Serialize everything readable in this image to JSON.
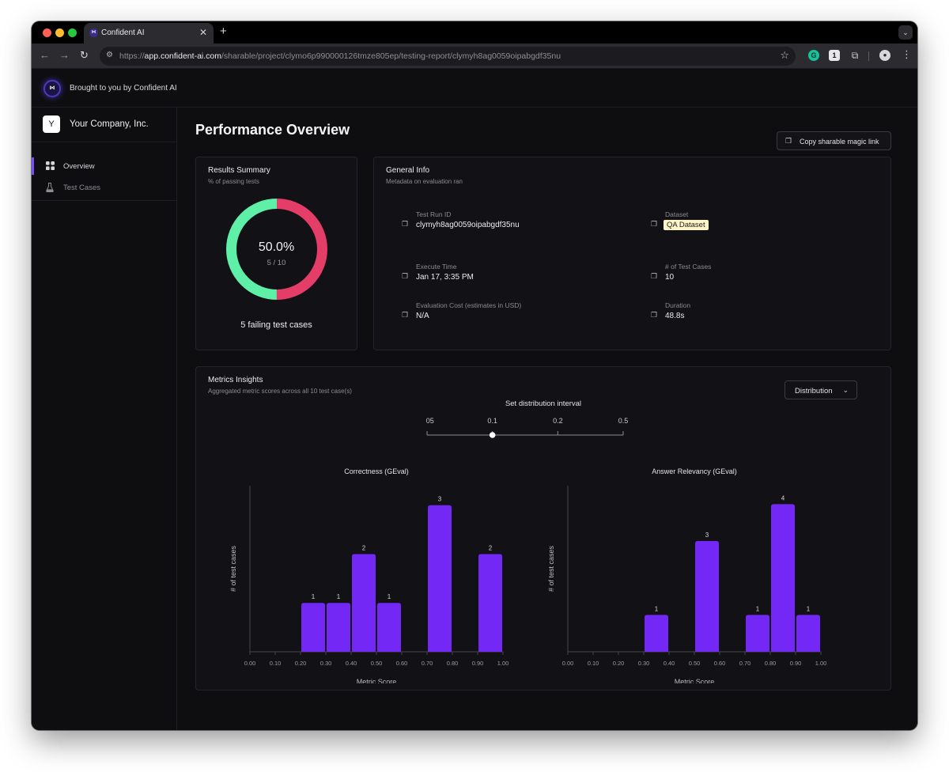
{
  "browser": {
    "tab_title": "Confident AI",
    "tab_close": "✕",
    "new_tab": "+",
    "url_scheme": "https://",
    "url_domain": "app.confident-ai.com",
    "url_path": "/sharable/project/clymo6p990000126tmze805ep/testing-report/clymyh8ag0059oipabgdf35nu",
    "extension_g": "G",
    "extension_1": "1"
  },
  "banner": {
    "logo_text": "⋈",
    "text": "Brought to you by Confident AI"
  },
  "sidebar": {
    "company_initial": "Y",
    "company_name": "Your Company, Inc.",
    "items": [
      {
        "label": "Overview",
        "icon": "grid-icon",
        "active": true
      },
      {
        "label": "Test Cases",
        "icon": "flask-icon",
        "active": false
      }
    ]
  },
  "page": {
    "title": "Performance Overview",
    "copy_link_label": "Copy sharable magic link"
  },
  "results_summary": {
    "title": "Results Summary",
    "subtitle": "% of passing tests",
    "percentage": "50.0%",
    "fraction": "5 / 10",
    "passing_fraction": 0.5,
    "failing_label": "5 failing test cases",
    "colors": {
      "pass": "#5ef0a6",
      "fail": "#e43d68"
    }
  },
  "general_info": {
    "title": "General Info",
    "subtitle": "Metadata on evaluation ran",
    "fields": {
      "test_run_id": {
        "label": "Test Run ID",
        "value": "clymyh8ag0059oipabgdf35nu"
      },
      "dataset": {
        "label": "Dataset",
        "value": "QA Dataset"
      },
      "execute_time": {
        "label": "Execute Time",
        "value": "Jan 17, 3:35 PM"
      },
      "num_test_cases": {
        "label": "# of Test Cases",
        "value": "10"
      },
      "evaluation_cost": {
        "label": "Evaluation Cost (estimates in USD)",
        "value": "N/A"
      },
      "duration": {
        "label": "Duration",
        "value": "48.8s"
      }
    }
  },
  "metrics_insights": {
    "title": "Metrics Insights",
    "subtitle": "Aggregated metric scores across all 10 test case(s)",
    "view_select": "Distribution",
    "interval_title": "Set distribution interval",
    "interval_options": [
      "0.05",
      "0.1",
      "0.2",
      "0.5"
    ],
    "interval_selected": "0.1",
    "accent_color": "#7428f5"
  },
  "chart_data": [
    {
      "type": "bar",
      "title": "Correctness (GEval)",
      "xlabel": "Metric Score",
      "ylabel": "# of test cases",
      "x_ticks": [
        "0.00",
        "0.10",
        "0.20",
        "0.30",
        "0.40",
        "0.50",
        "0.60",
        "0.70",
        "0.80",
        "0.90",
        "1.00"
      ],
      "bins": [
        [
          0.2,
          0.3
        ],
        [
          0.3,
          0.4
        ],
        [
          0.4,
          0.5
        ],
        [
          0.5,
          0.6
        ],
        [
          0.7,
          0.8
        ],
        [
          0.9,
          1.0
        ]
      ],
      "values": [
        1,
        1,
        2,
        1,
        3,
        2
      ],
      "xlim": [
        0,
        1
      ],
      "ylim": [
        0,
        3.4
      ]
    },
    {
      "type": "bar",
      "title": "Answer Relevancy (GEval)",
      "xlabel": "Metric Score",
      "ylabel": "# of test cases",
      "x_ticks": [
        "0.00",
        "0.10",
        "0.20",
        "0.30",
        "0.40",
        "0.50",
        "0.60",
        "0.70",
        "0.80",
        "0.90",
        "1.00"
      ],
      "bins": [
        [
          0.3,
          0.4
        ],
        [
          0.5,
          0.6
        ],
        [
          0.7,
          0.8
        ],
        [
          0.8,
          0.9
        ],
        [
          0.9,
          1.0
        ]
      ],
      "values": [
        1,
        3,
        1,
        4,
        1
      ],
      "xlim": [
        0,
        1
      ],
      "ylim": [
        0,
        4.5
      ]
    }
  ]
}
